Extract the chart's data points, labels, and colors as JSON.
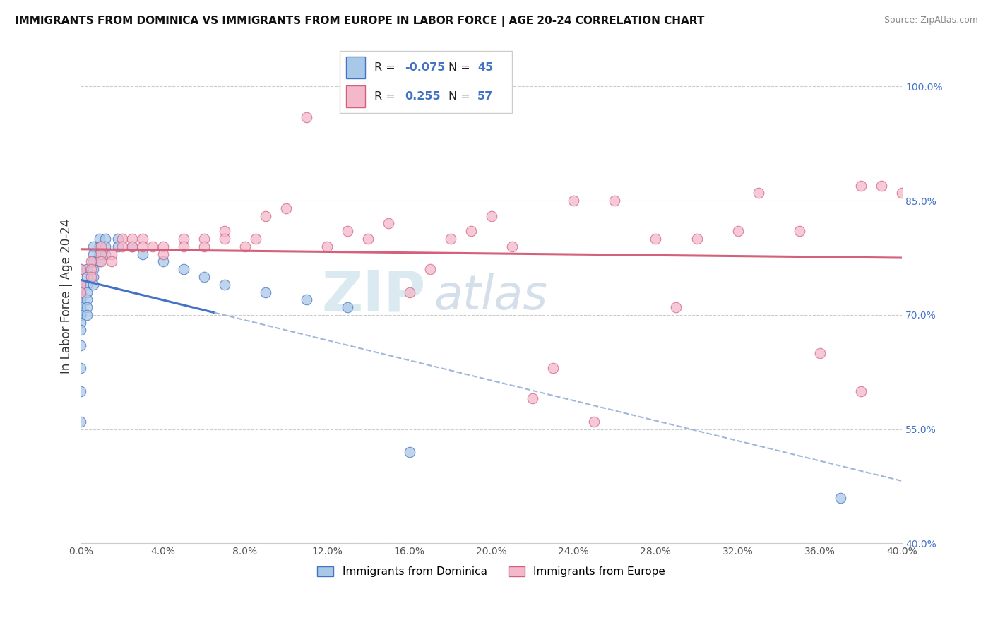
{
  "title": "IMMIGRANTS FROM DOMINICA VS IMMIGRANTS FROM EUROPE IN LABOR FORCE | AGE 20-24 CORRELATION CHART",
  "source": "Source: ZipAtlas.com",
  "ylabel": "In Labor Force | Age 20-24",
  "legend_label1": "Immigrants from Dominica",
  "legend_label2": "Immigrants from Europe",
  "R1": -0.075,
  "N1": 45,
  "R2": 0.255,
  "N2": 57,
  "color1": "#a8c8e8",
  "color2": "#f4b8cc",
  "trendline1_color": "#4472c4",
  "trendline2_color": "#d4607a",
  "xmin": 0.0,
  "xmax": 0.4,
  "ymin": 0.4,
  "ymax": 1.05,
  "yticks_right": [
    1.0,
    0.85,
    0.7,
    0.55,
    0.4
  ],
  "ytick_labels_right": [
    "100.0%",
    "85.0%",
    "70.0%",
    "55.0%",
    "40.0%"
  ],
  "dominica_x": [
    0.0,
    0.0,
    0.0,
    0.0,
    0.0,
    0.0,
    0.0,
    0.0,
    0.0,
    0.0,
    0.0,
    0.0,
    0.003,
    0.003,
    0.003,
    0.003,
    0.003,
    0.003,
    0.003,
    0.006,
    0.006,
    0.006,
    0.006,
    0.006,
    0.006,
    0.009,
    0.009,
    0.009,
    0.009,
    0.012,
    0.012,
    0.012,
    0.018,
    0.018,
    0.025,
    0.03,
    0.04,
    0.05,
    0.06,
    0.07,
    0.09,
    0.11,
    0.13,
    0.16,
    0.37
  ],
  "dominica_y": [
    0.76,
    0.74,
    0.73,
    0.72,
    0.71,
    0.7,
    0.69,
    0.68,
    0.66,
    0.63,
    0.6,
    0.56,
    0.76,
    0.75,
    0.74,
    0.73,
    0.72,
    0.71,
    0.7,
    0.79,
    0.78,
    0.77,
    0.76,
    0.75,
    0.74,
    0.8,
    0.79,
    0.78,
    0.77,
    0.8,
    0.79,
    0.78,
    0.8,
    0.79,
    0.79,
    0.78,
    0.77,
    0.76,
    0.75,
    0.74,
    0.73,
    0.72,
    0.71,
    0.52,
    0.46
  ],
  "europe_x": [
    0.0,
    0.0,
    0.0,
    0.005,
    0.005,
    0.005,
    0.01,
    0.01,
    0.01,
    0.015,
    0.015,
    0.02,
    0.02,
    0.025,
    0.025,
    0.03,
    0.03,
    0.035,
    0.04,
    0.04,
    0.05,
    0.05,
    0.06,
    0.06,
    0.07,
    0.07,
    0.08,
    0.085,
    0.09,
    0.1,
    0.11,
    0.12,
    0.13,
    0.14,
    0.15,
    0.16,
    0.17,
    0.18,
    0.19,
    0.2,
    0.21,
    0.22,
    0.23,
    0.24,
    0.25,
    0.26,
    0.28,
    0.29,
    0.3,
    0.32,
    0.33,
    0.35,
    0.36,
    0.38,
    0.38,
    0.39,
    0.4
  ],
  "europe_y": [
    0.76,
    0.74,
    0.73,
    0.77,
    0.76,
    0.75,
    0.79,
    0.78,
    0.77,
    0.78,
    0.77,
    0.8,
    0.79,
    0.8,
    0.79,
    0.8,
    0.79,
    0.79,
    0.79,
    0.78,
    0.8,
    0.79,
    0.8,
    0.79,
    0.81,
    0.8,
    0.79,
    0.8,
    0.83,
    0.84,
    0.96,
    0.79,
    0.81,
    0.8,
    0.82,
    0.73,
    0.76,
    0.8,
    0.81,
    0.83,
    0.79,
    0.59,
    0.63,
    0.85,
    0.56,
    0.85,
    0.8,
    0.71,
    0.8,
    0.81,
    0.86,
    0.81,
    0.65,
    0.87,
    0.6,
    0.87,
    0.86
  ]
}
